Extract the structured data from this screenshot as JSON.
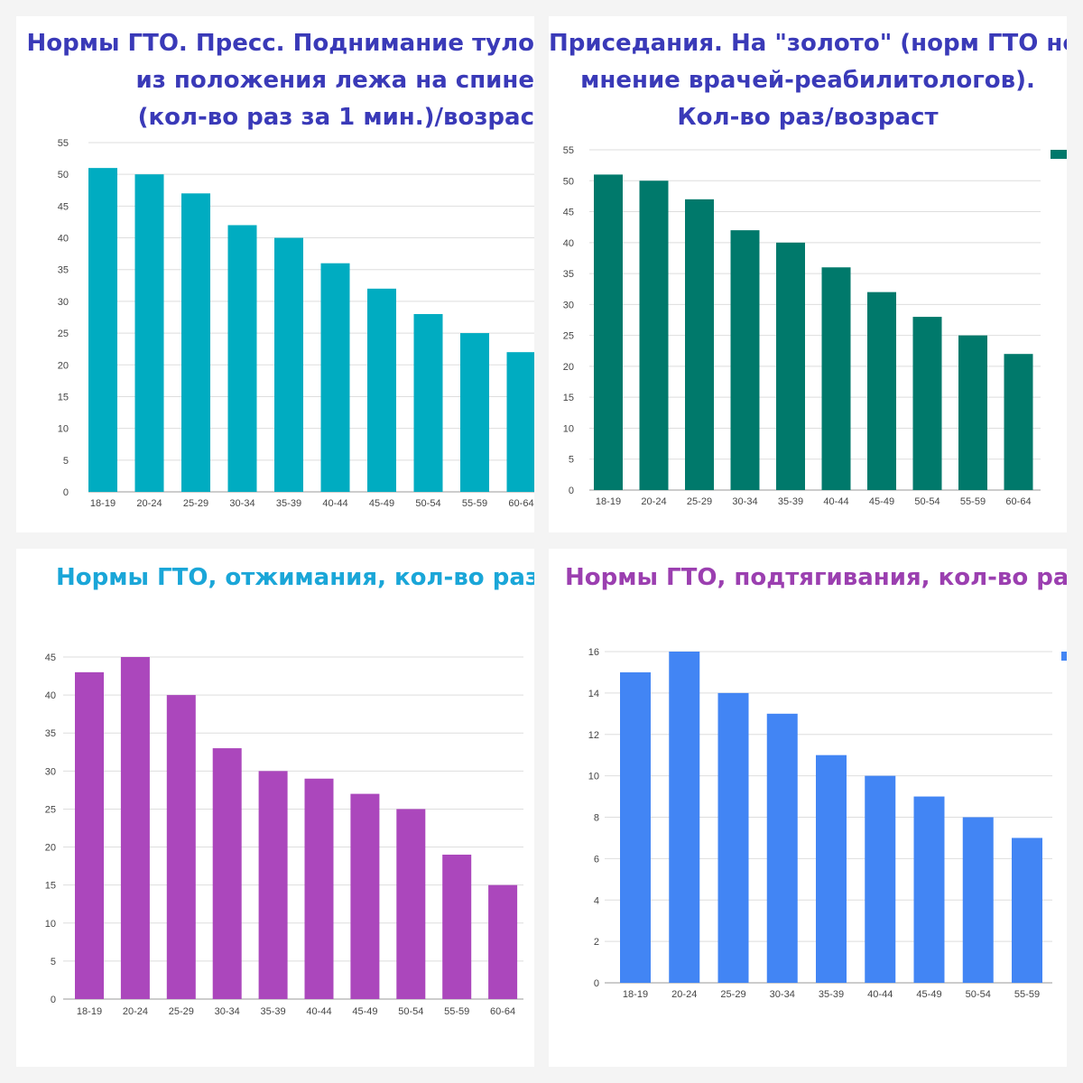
{
  "charts": [
    {
      "title_lines": [
        "Нормы ГТО. Пресс. Поднимание туло",
        "из положения лежа на спине",
        "(кол-во раз за 1 мин.)/возрас"
      ],
      "bar_color": "#00acc1"
    },
    {
      "title_lines": [
        "Приседания. На \"золото\" (норм ГТО нет",
        "мнение врачей-реабилитологов).",
        "Кол-во раз/возраст"
      ],
      "bar_color": "#00796b"
    },
    {
      "title_lines": [
        "Нормы ГТО, отжимания, кол-во раз/в"
      ],
      "bar_color": "#ab47bc"
    },
    {
      "title_lines": [
        "Нормы ГТО, подтягивания, кол-во раз/во"
      ],
      "bar_color": "#4285f4"
    }
  ],
  "chart_data": [
    {
      "type": "bar",
      "title": "Нормы ГТО. Пресс. Поднимание туло из положения лежа на спине (кол-во раз за 1 мин.)/возрас",
      "categories": [
        "18-19",
        "20-24",
        "25-29",
        "30-34",
        "35-39",
        "40-44",
        "45-49",
        "50-54",
        "55-59",
        "60-64"
      ],
      "values": [
        51,
        50,
        47,
        42,
        40,
        36,
        32,
        28,
        25,
        22
      ],
      "ylim": [
        0,
        55
      ],
      "yticks": [
        0,
        5,
        10,
        15,
        20,
        25,
        30,
        35,
        40,
        45,
        50,
        55
      ],
      "grid": true,
      "legend": "none"
    },
    {
      "type": "bar",
      "title": "Приседания. На \"золото\" (норм ГТО нет мнение врачей-реабилитологов). Кол-во раз/возраст",
      "categories": [
        "18-19",
        "20-24",
        "25-29",
        "30-34",
        "35-39",
        "40-44",
        "45-49",
        "50-54",
        "55-59",
        "60-64"
      ],
      "values": [
        51,
        50,
        47,
        42,
        40,
        36,
        32,
        28,
        25,
        22
      ],
      "ylim": [
        0,
        55
      ],
      "yticks": [
        0,
        5,
        10,
        15,
        20,
        25,
        30,
        35,
        40,
        45,
        50,
        55
      ],
      "grid": true,
      "legend": "top-right"
    },
    {
      "type": "bar",
      "title": "Нормы ГТО, отжимания, кол-во раз/в",
      "categories": [
        "18-19",
        "20-24",
        "25-29",
        "30-34",
        "35-39",
        "40-44",
        "45-49",
        "50-54",
        "55-59",
        "60-64"
      ],
      "values": [
        43,
        45,
        40,
        33,
        30,
        29,
        27,
        25,
        19,
        15
      ],
      "ylim": [
        0,
        45
      ],
      "yticks": [
        0,
        5,
        10,
        15,
        20,
        25,
        30,
        35,
        40,
        45
      ],
      "grid": true,
      "legend": "none"
    },
    {
      "type": "bar",
      "title": "Нормы ГТО, подтягивания, кол-во раз/во",
      "categories": [
        "18-19",
        "20-24",
        "25-29",
        "30-34",
        "35-39",
        "40-44",
        "45-49",
        "50-54",
        "55-59"
      ],
      "values": [
        15,
        16,
        14,
        13,
        11,
        10,
        9,
        8,
        7
      ],
      "ylim": [
        0,
        16
      ],
      "yticks": [
        0,
        2,
        4,
        6,
        8,
        10,
        12,
        14,
        16
      ],
      "grid": true,
      "legend": "top-right"
    }
  ]
}
